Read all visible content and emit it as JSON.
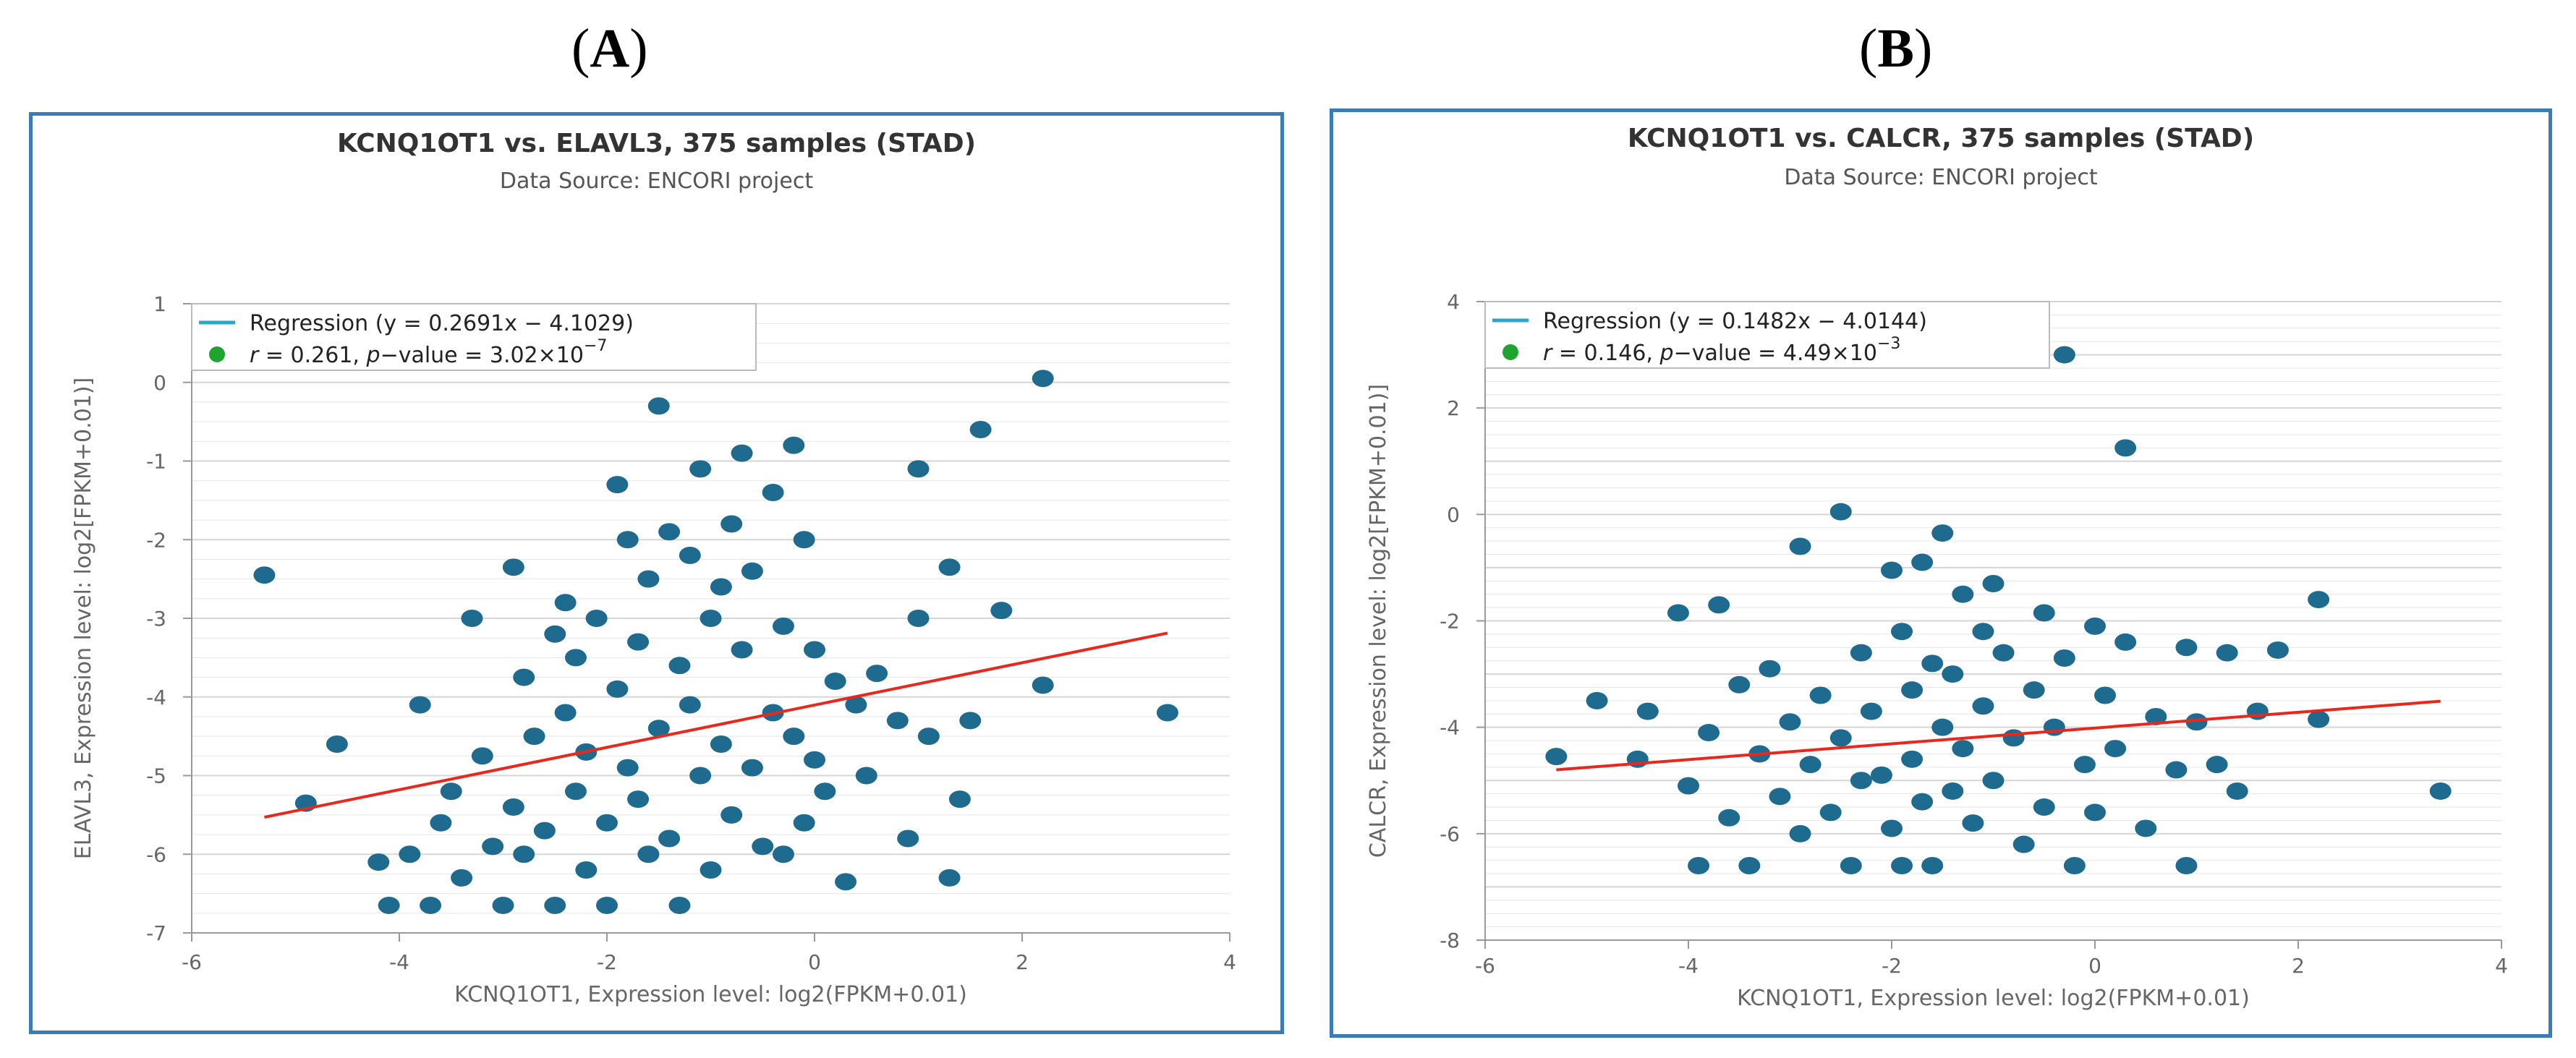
{
  "panels": [
    {
      "label_open": "(",
      "label_letter": "A",
      "label_close": ")"
    },
    {
      "label_open": "(",
      "label_letter": "B",
      "label_close": ")"
    }
  ],
  "colors": {
    "frame": "#3a7cb8",
    "point": "#1f6a8f",
    "regression": "#e8281c",
    "legend_line": "#29a9c9",
    "legend_dot": "#1fa52f"
  },
  "chart_data": [
    {
      "type": "scatter",
      "title": "KCNQ1OT1 vs. ELAVL3, 375 samples (STAD)",
      "subtitle": "Data Source: ENCORI project",
      "xlabel": "KCNQ1OT1, Expression level: log2(FPKM+0.01)",
      "ylabel": "ELAVL3, Expression level: log2[FPKM+0.01)]",
      "xlim": [
        -6,
        4
      ],
      "ylim": [
        -7,
        1
      ],
      "xticks": [
        "-6",
        "-4",
        "-2",
        "0",
        "2",
        "4"
      ],
      "yticks": [
        "1",
        "0",
        "-1",
        "-2",
        "-3",
        "-4",
        "-5",
        "-6",
        "-7"
      ],
      "legend": {
        "regression": "Regression (y = 0.2691x − 4.1029)",
        "stat_r": "r",
        "stat_mid": " = 0.261, ",
        "stat_p": "p",
        "stat_tail": "−value = 3.02×10",
        "stat_exp": "−7"
      },
      "regression": {
        "slope": 0.2691,
        "intercept": -4.1029,
        "x_range": [
          -5.3,
          3.4
        ]
      },
      "points": [
        [
          -5.3,
          -2.45
        ],
        [
          -4.9,
          -5.35
        ],
        [
          -4.6,
          -4.6
        ],
        [
          -4.2,
          -6.1
        ],
        [
          -4.1,
          -6.65
        ],
        [
          -3.9,
          -6.0
        ],
        [
          -3.8,
          -4.1
        ],
        [
          -3.7,
          -6.65
        ],
        [
          -3.6,
          -5.6
        ],
        [
          -3.5,
          -5.2
        ],
        [
          -3.4,
          -6.3
        ],
        [
          -3.3,
          -3.0
        ],
        [
          -3.2,
          -4.75
        ],
        [
          -3.1,
          -5.9
        ],
        [
          -3.0,
          -6.65
        ],
        [
          -2.9,
          -5.4
        ],
        [
          -2.9,
          -2.35
        ],
        [
          -2.8,
          -3.75
        ],
        [
          -2.8,
          -6.0
        ],
        [
          -2.7,
          -4.5
        ],
        [
          -2.6,
          -5.7
        ],
        [
          -2.5,
          -3.2
        ],
        [
          -2.5,
          -6.65
        ],
        [
          -2.4,
          -4.2
        ],
        [
          -2.4,
          -2.8
        ],
        [
          -2.3,
          -5.2
        ],
        [
          -2.3,
          -3.5
        ],
        [
          -2.2,
          -6.2
        ],
        [
          -2.2,
          -4.7
        ],
        [
          -2.1,
          -3.0
        ],
        [
          -2.0,
          -5.6
        ],
        [
          -2.0,
          -6.65
        ],
        [
          -1.9,
          -1.3
        ],
        [
          -1.9,
          -3.9
        ],
        [
          -1.8,
          -4.9
        ],
        [
          -1.8,
          -2.0
        ],
        [
          -1.7,
          -5.3
        ],
        [
          -1.7,
          -3.3
        ],
        [
          -1.6,
          -6.0
        ],
        [
          -1.6,
          -2.5
        ],
        [
          -1.5,
          -0.3
        ],
        [
          -1.5,
          -4.4
        ],
        [
          -1.4,
          -1.9
        ],
        [
          -1.4,
          -5.8
        ],
        [
          -1.3,
          -3.6
        ],
        [
          -1.3,
          -6.65
        ],
        [
          -1.2,
          -2.2
        ],
        [
          -1.2,
          -4.1
        ],
        [
          -1.1,
          -1.1
        ],
        [
          -1.1,
          -5.0
        ],
        [
          -1.0,
          -3.0
        ],
        [
          -1.0,
          -6.2
        ],
        [
          -0.9,
          -2.6
        ],
        [
          -0.9,
          -4.6
        ],
        [
          -0.8,
          -1.8
        ],
        [
          -0.8,
          -5.5
        ],
        [
          -0.7,
          -0.9
        ],
        [
          -0.7,
          -3.4
        ],
        [
          -0.6,
          -4.9
        ],
        [
          -0.6,
          -2.4
        ],
        [
          -0.5,
          -5.9
        ],
        [
          -0.4,
          -1.4
        ],
        [
          -0.4,
          -4.2
        ],
        [
          -0.3,
          -3.1
        ],
        [
          -0.3,
          -6.0
        ],
        [
          -0.2,
          -0.8
        ],
        [
          -0.2,
          -4.5
        ],
        [
          -0.1,
          -2.0
        ],
        [
          -0.1,
          -5.6
        ],
        [
          0.0,
          -3.4
        ],
        [
          0.0,
          -4.8
        ],
        [
          0.1,
          -5.2
        ],
        [
          0.2,
          -3.8
        ],
        [
          0.3,
          -6.35
        ],
        [
          0.4,
          -4.1
        ],
        [
          0.5,
          -5.0
        ],
        [
          0.6,
          -3.7
        ],
        [
          0.8,
          -4.3
        ],
        [
          0.9,
          -5.8
        ],
        [
          1.0,
          -1.1
        ],
        [
          1.0,
          -3.0
        ],
        [
          1.1,
          -4.5
        ],
        [
          1.3,
          -6.3
        ],
        [
          1.3,
          -2.35
        ],
        [
          1.4,
          -5.3
        ],
        [
          1.5,
          -4.3
        ],
        [
          1.6,
          -0.6
        ],
        [
          1.8,
          -2.9
        ],
        [
          2.2,
          0.05
        ],
        [
          2.2,
          -3.85
        ],
        [
          3.4,
          -4.2
        ]
      ]
    },
    {
      "type": "scatter",
      "title": "KCNQ1OT1 vs. CALCR, 375 samples (STAD)",
      "subtitle": "Data Source: ENCORI project",
      "xlabel": "KCNQ1OT1, Expression level: log2(FPKM+0.01)",
      "ylabel": "CALCR, Expression level: log2[FPKM+0.01)]",
      "xlim": [
        -6,
        4
      ],
      "ylim": [
        -8,
        4
      ],
      "xticks": [
        "-6",
        "-4",
        "-2",
        "0",
        "2",
        "4"
      ],
      "yticks": [
        "4",
        "2",
        "0",
        "-2",
        "-4",
        "-6",
        "-8"
      ],
      "legend": {
        "regression": "Regression (y = 0.1482x − 4.0144)",
        "stat_r": "r",
        "stat_mid": " = 0.146, ",
        "stat_p": "p",
        "stat_tail": "−value = 4.49×10",
        "stat_exp": "−3"
      },
      "regression": {
        "slope": 0.1482,
        "intercept": -4.0144,
        "x_range": [
          -5.3,
          3.4
        ]
      },
      "points": [
        [
          -5.3,
          -4.55
        ],
        [
          -4.9,
          -3.5
        ],
        [
          -4.5,
          -4.6
        ],
        [
          -4.4,
          -3.7
        ],
        [
          -4.1,
          -1.85
        ],
        [
          -4.0,
          -5.1
        ],
        [
          -3.9,
          -6.6
        ],
        [
          -3.8,
          -4.1
        ],
        [
          -3.7,
          -1.7
        ],
        [
          -3.6,
          -5.7
        ],
        [
          -3.5,
          -3.2
        ],
        [
          -3.4,
          -6.6
        ],
        [
          -3.3,
          -4.5
        ],
        [
          -3.2,
          -2.9
        ],
        [
          -3.1,
          -5.3
        ],
        [
          -3.0,
          -3.9
        ],
        [
          -2.9,
          -0.6
        ],
        [
          -2.9,
          -6.0
        ],
        [
          -2.8,
          -4.7
        ],
        [
          -2.7,
          -3.4
        ],
        [
          -2.6,
          -5.6
        ],
        [
          -2.5,
          0.05
        ],
        [
          -2.5,
          -4.2
        ],
        [
          -2.4,
          -6.6
        ],
        [
          -2.3,
          -2.6
        ],
        [
          -2.3,
          -5.0
        ],
        [
          -2.2,
          -3.7
        ],
        [
          -2.1,
          -4.9
        ],
        [
          -2.0,
          -1.05
        ],
        [
          -2.0,
          -5.9
        ],
        [
          -1.9,
          -2.2
        ],
        [
          -1.9,
          -6.6
        ],
        [
          -1.8,
          -3.3
        ],
        [
          -1.8,
          -4.6
        ],
        [
          -1.7,
          -0.9
        ],
        [
          -1.7,
          -5.4
        ],
        [
          -1.6,
          -2.8
        ],
        [
          -1.6,
          -6.6
        ],
        [
          -1.5,
          -0.35
        ],
        [
          -1.5,
          -4.0
        ],
        [
          -1.4,
          -3.0
        ],
        [
          -1.4,
          -5.2
        ],
        [
          -1.3,
          -1.5
        ],
        [
          -1.3,
          -4.4
        ],
        [
          -1.2,
          -5.8
        ],
        [
          -1.1,
          -2.2
        ],
        [
          -1.1,
          -3.6
        ],
        [
          -1.0,
          -1.3
        ],
        [
          -1.0,
          -5.0
        ],
        [
          -0.9,
          -2.6
        ],
        [
          -0.8,
          -4.2
        ],
        [
          -0.7,
          -6.2
        ],
        [
          -0.6,
          -3.3
        ],
        [
          -0.5,
          -1.85
        ],
        [
          -0.5,
          -5.5
        ],
        [
          -0.4,
          -4.0
        ],
        [
          -0.3,
          3.0
        ],
        [
          -0.3,
          -2.7
        ],
        [
          -0.2,
          -6.6
        ],
        [
          -0.1,
          -4.7
        ],
        [
          0.0,
          -2.1
        ],
        [
          0.0,
          -5.6
        ],
        [
          0.1,
          -3.4
        ],
        [
          0.2,
          -4.4
        ],
        [
          0.3,
          1.25
        ],
        [
          0.3,
          -2.4
        ],
        [
          0.5,
          -5.9
        ],
        [
          0.6,
          -3.8
        ],
        [
          0.8,
          -4.8
        ],
        [
          0.9,
          -2.5
        ],
        [
          0.9,
          -6.6
        ],
        [
          1.0,
          -3.9
        ],
        [
          1.2,
          -4.7
        ],
        [
          1.3,
          -2.6
        ],
        [
          1.4,
          -5.2
        ],
        [
          1.6,
          -3.7
        ],
        [
          1.8,
          -2.55
        ],
        [
          2.2,
          -1.6
        ],
        [
          2.2,
          -3.85
        ],
        [
          3.4,
          -5.2
        ]
      ]
    }
  ]
}
